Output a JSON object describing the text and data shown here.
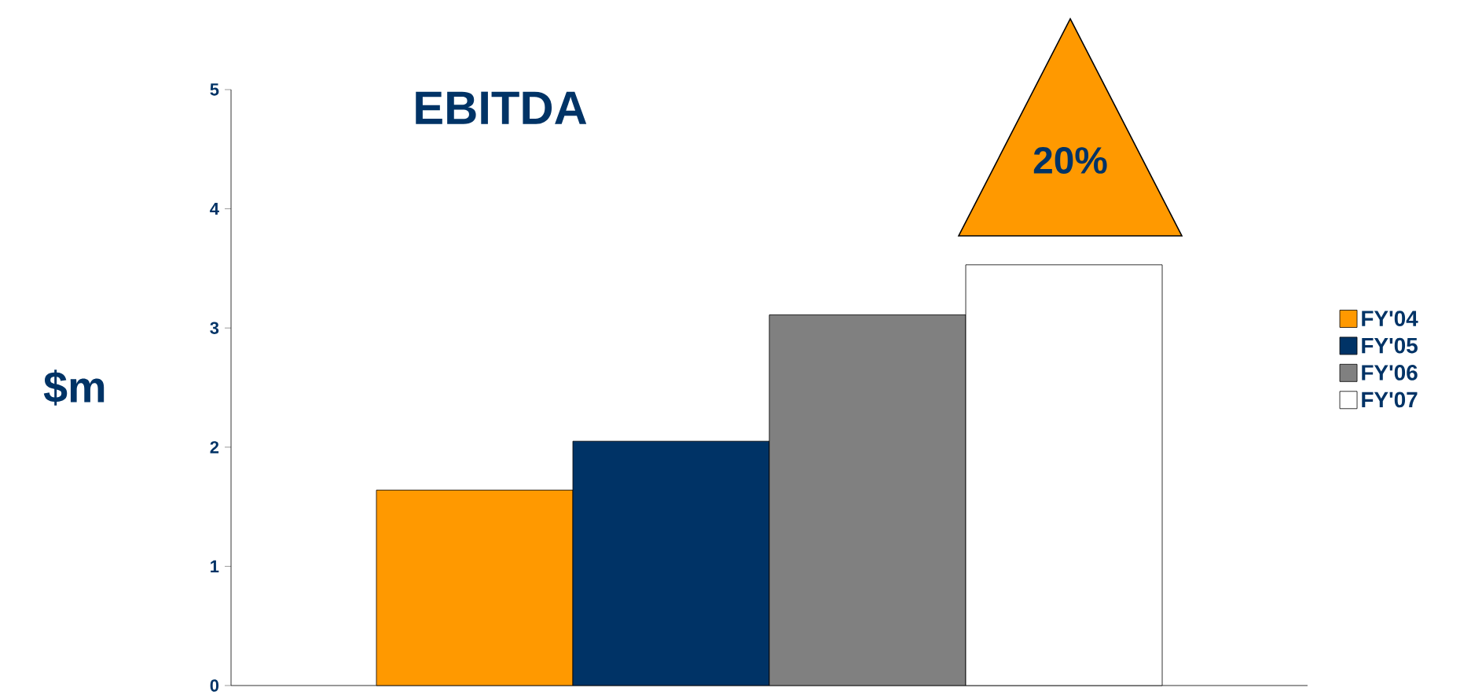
{
  "chart_data": {
    "type": "bar",
    "title": "EBITDA",
    "ylabel": "$m",
    "categories": [
      null
    ],
    "series": [
      {
        "name": "FY'04",
        "color": "#ff9900",
        "values": [
          1.64
        ]
      },
      {
        "name": "FY'05",
        "color": "#003366",
        "values": [
          2.05
        ]
      },
      {
        "name": "FY'06",
        "color": "#808080",
        "values": [
          3.11
        ]
      },
      {
        "name": "FY'07",
        "color": "#ffffff",
        "values": [
          3.53
        ]
      }
    ],
    "ylim": [
      0,
      5
    ],
    "yticks": [
      0,
      1,
      2,
      3,
      4,
      5
    ],
    "legend": "right",
    "annotations": [
      "20%"
    ]
  }
}
